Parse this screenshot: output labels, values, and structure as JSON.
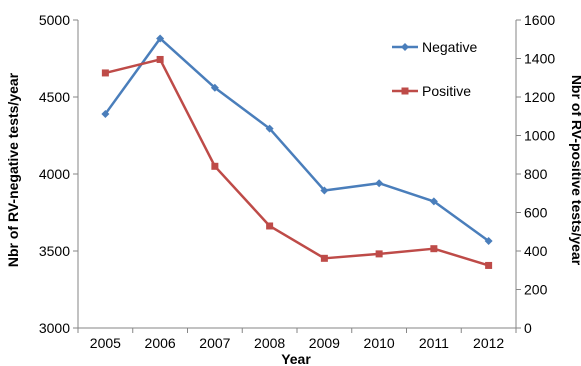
{
  "chart_data": {
    "type": "line",
    "categories": [
      "2005",
      "2006",
      "2007",
      "2008",
      "2009",
      "2010",
      "2011",
      "2012"
    ],
    "xlabel": "Year",
    "ylabel_left": "Nbr of RV-negative tests/year",
    "ylabel_right": "Nbr of RV-positive tests/year",
    "ylim_left": [
      3000,
      5000
    ],
    "ylim_right": [
      0,
      1600
    ],
    "yticks_left": [
      "3000",
      "3500",
      "4000",
      "4500",
      "5000"
    ],
    "yticks_right": [
      "0",
      "200",
      "400",
      "600",
      "800",
      "1000",
      "1200",
      "1400",
      "1600"
    ],
    "grid": false,
    "legend_position": "top-right",
    "series": [
      {
        "name": "Negative",
        "axis": "left",
        "color": "#4a7ebb",
        "marker": "diamond",
        "values": [
          4390,
          4880,
          4560,
          4295,
          3893,
          3940,
          3822,
          3565
        ]
      },
      {
        "name": "Positive",
        "axis": "right",
        "color": "#be4b48",
        "marker": "square",
        "values": [
          1325,
          1395,
          840,
          530,
          362,
          385,
          412,
          325
        ]
      }
    ]
  }
}
